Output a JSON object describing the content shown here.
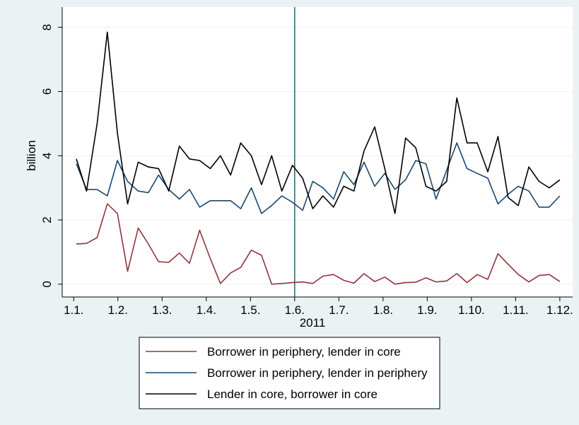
{
  "chart_data": {
    "type": "line",
    "x_label": "2011",
    "y_label": "billion",
    "x": [
      0.06,
      0.29,
      0.53,
      0.76,
      0.99,
      1.22,
      1.46,
      1.69,
      1.92,
      2.15,
      2.39,
      2.62,
      2.85,
      3.09,
      3.32,
      3.55,
      3.78,
      4.02,
      4.25,
      4.48,
      4.71,
      4.95,
      5.18,
      5.41,
      5.64,
      5.88,
      6.11,
      6.34,
      6.57,
      6.81,
      7.04,
      7.27,
      7.51,
      7.74,
      7.97,
      8.2,
      8.44,
      8.67,
      8.9,
      9.13,
      9.37,
      9.6,
      9.83,
      10.06,
      10.3,
      10.53,
      10.76,
      11.0
    ],
    "series": [
      {
        "name": "Borrower in periphery, lender in core",
        "color": "#90353b",
        "values": [
          1.25,
          1.27,
          1.45,
          2.5,
          2.2,
          0.4,
          1.75,
          1.25,
          0.7,
          0.68,
          0.97,
          0.65,
          1.68,
          0.8,
          0.02,
          0.35,
          0.52,
          1.06,
          0.9,
          0.0,
          0.02,
          0.05,
          0.07,
          0.02,
          0.25,
          0.3,
          0.12,
          0.03,
          0.33,
          0.08,
          0.22,
          0.0,
          0.05,
          0.06,
          0.2,
          0.07,
          0.1,
          0.33,
          0.05,
          0.3,
          0.15,
          0.95,
          0.62,
          0.3,
          0.07,
          0.27,
          0.3,
          0.08
        ]
      },
      {
        "name": "Borrower in periphery, lender in periphery",
        "color": "#1a476f",
        "values": [
          3.75,
          2.95,
          2.95,
          2.75,
          3.85,
          3.2,
          2.9,
          2.85,
          3.4,
          2.95,
          2.65,
          2.95,
          2.4,
          2.6,
          2.6,
          2.6,
          2.35,
          3.0,
          2.2,
          2.45,
          2.75,
          2.55,
          2.3,
          3.2,
          3.0,
          2.65,
          3.5,
          3.1,
          3.8,
          3.05,
          3.45,
          2.95,
          3.25,
          3.85,
          3.75,
          2.65,
          3.55,
          4.4,
          3.6,
          3.45,
          3.3,
          2.5,
          2.8,
          3.05,
          2.9,
          2.4,
          2.4,
          2.75
        ]
      },
      {
        "name": "Lender in core, borrower in core",
        "color": "#000000",
        "values": [
          3.9,
          2.9,
          5.0,
          7.85,
          4.7,
          2.5,
          3.8,
          3.65,
          3.6,
          2.9,
          4.3,
          3.9,
          3.85,
          3.6,
          4.0,
          3.4,
          4.4,
          4.0,
          3.1,
          4.0,
          2.9,
          3.7,
          3.3,
          2.35,
          2.75,
          2.4,
          3.05,
          2.9,
          4.15,
          4.9,
          3.6,
          2.2,
          4.55,
          4.25,
          3.05,
          2.9,
          3.2,
          5.8,
          4.4,
          4.4,
          3.5,
          4.6,
          2.7,
          2.45,
          3.65,
          3.2,
          3.0,
          3.25
        ]
      }
    ],
    "xlim": [
      -0.26,
      11.29
    ],
    "ylim": [
      -0.4,
      8.63
    ],
    "xticks": [
      {
        "value": 0,
        "label": "1.1."
      },
      {
        "value": 1,
        "label": "1.2."
      },
      {
        "value": 2,
        "label": "1.3."
      },
      {
        "value": 3,
        "label": "1.4."
      },
      {
        "value": 4,
        "label": "1.5."
      },
      {
        "value": 5,
        "label": "1.6."
      },
      {
        "value": 6,
        "label": "1.7."
      },
      {
        "value": 7,
        "label": "1.8."
      },
      {
        "value": 8,
        "label": "1.9."
      },
      {
        "value": 9,
        "label": "1.10."
      },
      {
        "value": 10,
        "label": "1.11."
      },
      {
        "value": 11,
        "label": "1.12."
      }
    ],
    "yticks": [
      0,
      2,
      4,
      6,
      8
    ],
    "xline": 5,
    "xline_color": "#2a6470",
    "grid": true,
    "legend": "bottom"
  }
}
